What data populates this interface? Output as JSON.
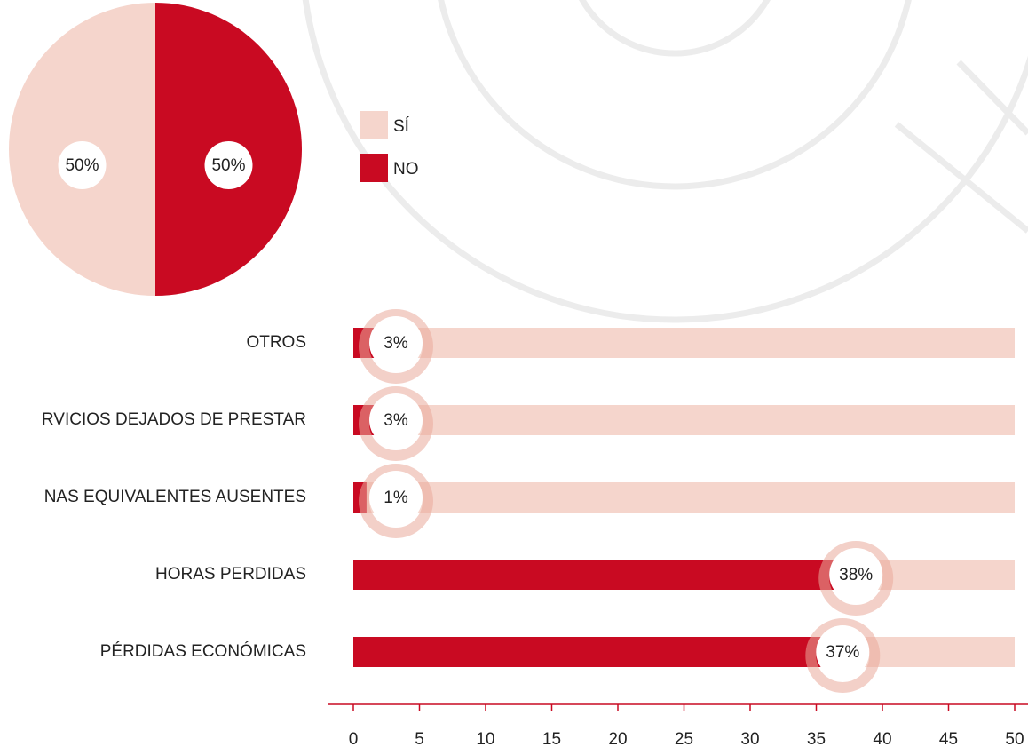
{
  "chart_data": [
    {
      "type": "pie",
      "categories": [
        "SÍ",
        "NO"
      ],
      "values": [
        50,
        50
      ],
      "value_labels": [
        "50%",
        "50%"
      ],
      "colors": [
        "#f5d5cc",
        "#c90a22"
      ],
      "legend": "right"
    },
    {
      "type": "hbar",
      "categories": [
        "OTROS",
        "RVICIOS DEJADOS DE PRESTAR",
        "NAS EQUIVALENTES AUSENTES",
        "HORAS PERDIDAS",
        "PÉRDIDAS ECONÓMICAS"
      ],
      "values": [
        3,
        3,
        1,
        38,
        37
      ],
      "value_labels": [
        "3%",
        "3%",
        "1%",
        "38%",
        "37%"
      ],
      "color": "#c90a22",
      "track_color": "#f5d5cc",
      "xlim": [
        0,
        50
      ],
      "xticks": [
        0,
        5,
        10,
        15,
        20,
        25,
        30,
        35,
        40,
        45,
        50
      ]
    }
  ]
}
